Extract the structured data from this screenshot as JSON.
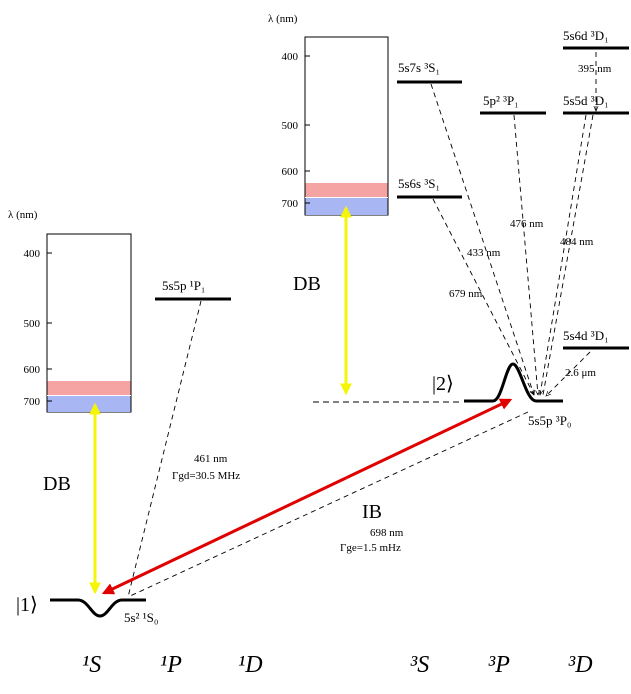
{
  "colors": {
    "level": "#000000",
    "dashed": "#000000",
    "dipole_beam": "#f5f50a",
    "ib_arrow": "#e00000",
    "band_red": "#f6a3a3",
    "band_blue": "#a9b6f4"
  },
  "spectrum_boxes": {
    "left": {
      "axis_label": "λ (nm)",
      "ticks": [
        "400",
        "500",
        "600",
        "700"
      ]
    },
    "right": {
      "axis_label": "λ (nm)",
      "ticks": [
        "400",
        "500",
        "600",
        "700"
      ]
    }
  },
  "columns": [
    "¹S",
    "¹P",
    "¹D",
    "³S",
    "³P",
    "³D"
  ],
  "levels": {
    "ground": "5s² ¹S₀",
    "p1": "5s5p ¹P₁",
    "s7": "5s7s ³S₁",
    "s6": "5s6s ³S₁",
    "p23": "5p² ³P₁",
    "d6": "5s6d ³D₁",
    "d5": "5s5d ³D₁",
    "d4": "5s4d ³D₁",
    "p0": "5s5p ³P₀"
  },
  "states": {
    "ket1": "|1⟩",
    "ket2": "|2⟩"
  },
  "beams": {
    "db_left": "DB",
    "db_right": "DB",
    "ib": "IB"
  },
  "transitions": {
    "t461": "461 nm",
    "gamma_gd": "Γgd=30.5 MHz",
    "t698": "698 nm",
    "gamma_ge": "Γge=1.5 mHz",
    "t679": "679 nm",
    "t433": "433 nm",
    "t476": "476 nm",
    "t484": "484 nm",
    "t395": "395 nm",
    "t26": "2.6 μm"
  }
}
